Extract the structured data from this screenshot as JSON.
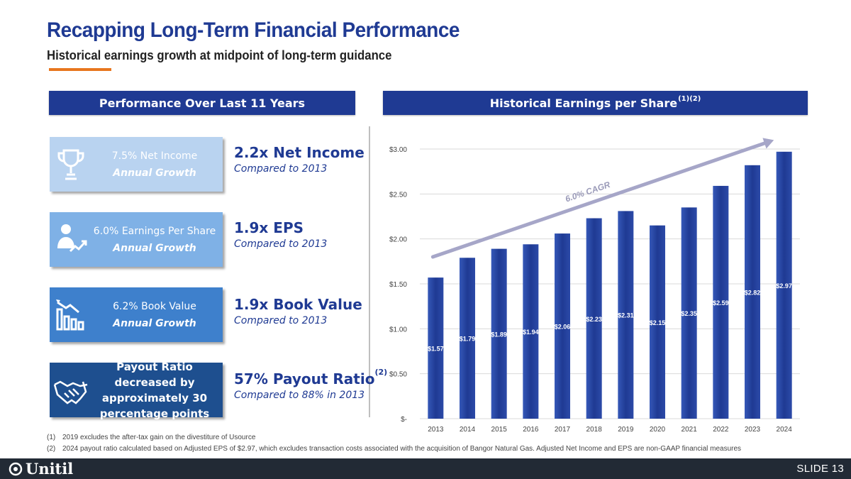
{
  "header": {
    "title": "Recapping Long-Term Financial Performance",
    "subtitle": "Historical earnings growth at midpoint of long-term guidance"
  },
  "left_panel": {
    "title": "Performance Over Last 11 Years",
    "cards": [
      {
        "icon": "trophy-icon",
        "line1": "7.5% Net Income",
        "line2": "Annual Growth"
      },
      {
        "icon": "person-growth-icon",
        "line1": "6.0% Earnings Per Share",
        "line2": "Annual Growth"
      },
      {
        "icon": "bar-chart-down-icon",
        "line1": "6.2% Book Value",
        "line2": "Annual Growth"
      },
      {
        "icon": "handshake-icon",
        "text": "Payout Ratio decreased by approximately 30 percentage points"
      }
    ],
    "metrics": [
      {
        "value": "2.2x Net Income",
        "note": "Compared to 2013"
      },
      {
        "value": "1.9x EPS",
        "note": "Compared to 2013"
      },
      {
        "value": "1.9x Book Value",
        "note": "Compared to 2013"
      },
      {
        "value": "57% Payout Ratio",
        "sup": "(2)",
        "note": "Compared to 88% in 2013"
      }
    ]
  },
  "right_panel": {
    "title": "Historical Earnings per Share",
    "title_sup": "(1)(2)"
  },
  "chart_data": {
    "type": "bar",
    "title": "Historical Earnings per Share",
    "categories": [
      "2013",
      "2014",
      "2015",
      "2016",
      "2017",
      "2018",
      "2019",
      "2020",
      "2021",
      "2022",
      "2023",
      "2024"
    ],
    "values": [
      1.57,
      1.79,
      1.89,
      1.94,
      2.06,
      2.23,
      2.31,
      2.15,
      2.35,
      2.59,
      2.82,
      2.97
    ],
    "data_labels": [
      "$1.57",
      "$1.79",
      "$1.89",
      "$1.94",
      "$2.06",
      "$2.23",
      "$2.31",
      "$2.15",
      "$2.35",
      "$2.59",
      "$2.82",
      "$2.97"
    ],
    "y_ticks": [
      0,
      0.5,
      1.0,
      1.5,
      2.0,
      2.5,
      3.0
    ],
    "y_tick_labels": [
      "$-",
      "$0.50",
      "$1.00",
      "$1.50",
      "$2.00",
      "$2.50",
      "$3.00"
    ],
    "ylim": [
      0,
      3.0
    ],
    "grid": true,
    "annotation": "6.0% CAGR",
    "bar_color": "#1f3a93",
    "arrow_color": "#a6a6c8"
  },
  "footnotes": [
    {
      "n": "(1)",
      "text": "2019 excludes the after-tax gain on the divestiture of Usource"
    },
    {
      "n": "(2)",
      "text": "2024 payout ratio calculated based on Adjusted EPS of $2.97, which excludes transaction costs associated with the acquisition of Bangor Natural Gas. Adjusted Net Income and EPS are non-GAAP financial measures"
    }
  ],
  "footer": {
    "logo_text": "Unitil",
    "slide": "SLIDE 13"
  }
}
